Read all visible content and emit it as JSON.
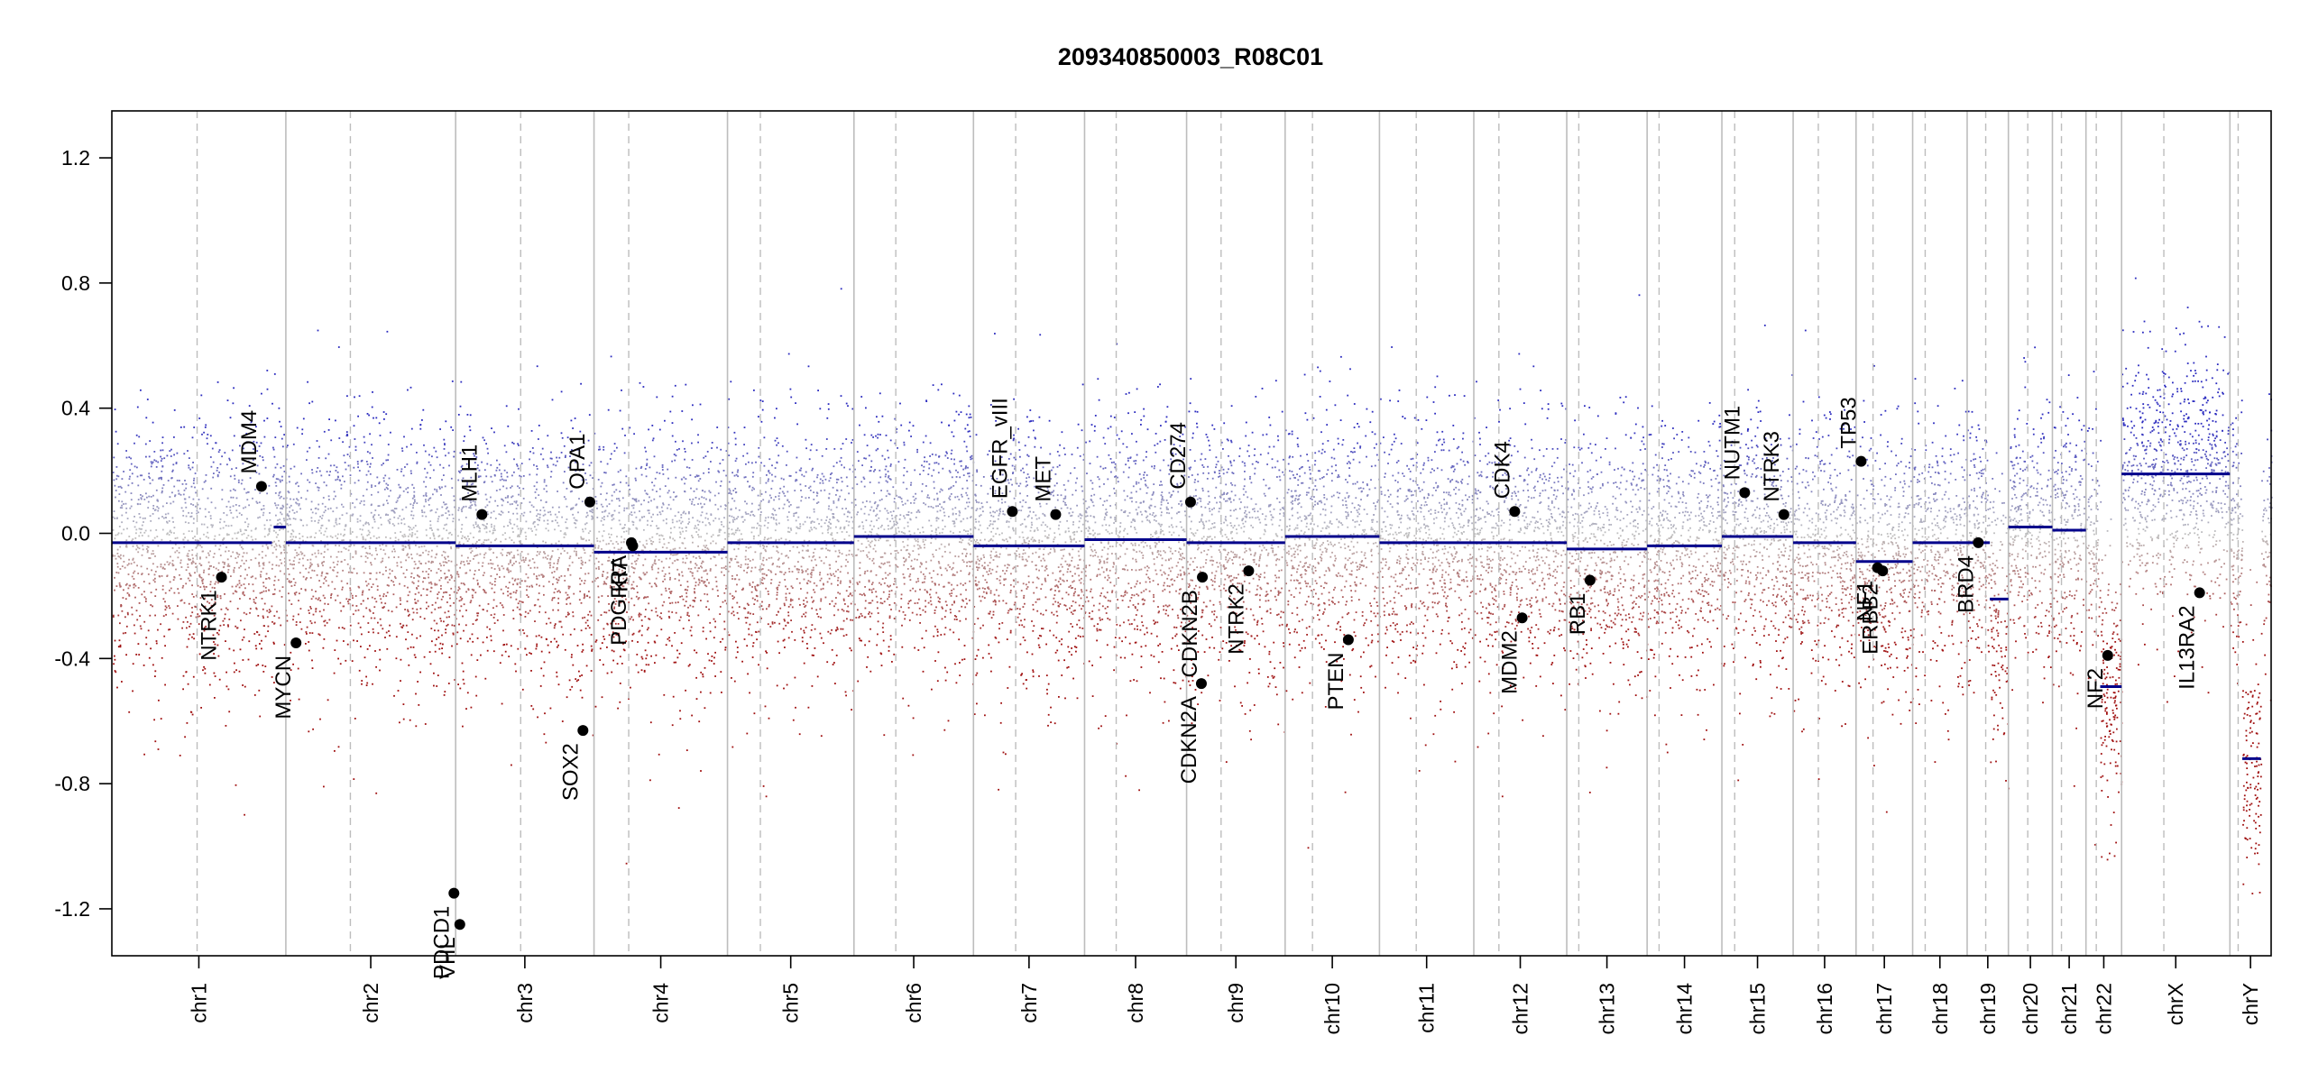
{
  "chart_data": {
    "type": "scatter",
    "title": "209340850003_R08C01",
    "xlabel": "",
    "ylabel": "",
    "ylim": [
      -1.35,
      1.35
    ],
    "yticks": [
      "1.2",
      "0.8",
      "0.4",
      "0.0",
      "-0.4",
      "-0.8",
      "-1.2"
    ],
    "ytick_values": [
      1.2,
      0.8,
      0.4,
      0.0,
      -0.4,
      -0.8,
      -1.2
    ],
    "grid": false,
    "colors": {
      "gain": "#2b2bbf",
      "loss": "#a01010",
      "neutral": "#bfbfbf",
      "segment": "#00008b",
      "chrom_border": "#bdbdbd",
      "centromere": "#bdbdbd",
      "gene_point": "#000000"
    },
    "chromosomes": [
      {
        "name": "chr1",
        "length": 249,
        "centromere": 0.49,
        "segments": [
          {
            "from": 0,
            "to": 0.92,
            "value": -0.03
          },
          {
            "from": 0.93,
            "to": 1.0,
            "value": 0.02
          }
        ]
      },
      {
        "name": "chr2",
        "length": 243,
        "centromere": 0.38,
        "segments": [
          {
            "from": 0,
            "to": 1.0,
            "value": -0.03
          }
        ]
      },
      {
        "name": "chr3",
        "length": 198,
        "centromere": 0.47,
        "segments": [
          {
            "from": 0,
            "to": 1.0,
            "value": -0.04
          }
        ]
      },
      {
        "name": "chr4",
        "length": 191,
        "centromere": 0.26,
        "segments": [
          {
            "from": 0,
            "to": 1.0,
            "value": -0.06
          }
        ]
      },
      {
        "name": "chr5",
        "length": 181,
        "centromere": 0.26,
        "segments": [
          {
            "from": 0,
            "to": 1.0,
            "value": -0.03
          }
        ]
      },
      {
        "name": "chr6",
        "length": 171,
        "centromere": 0.35,
        "segments": [
          {
            "from": 0,
            "to": 1.0,
            "value": -0.01
          }
        ]
      },
      {
        "name": "chr7",
        "length": 159,
        "centromere": 0.38,
        "segments": [
          {
            "from": 0,
            "to": 1.0,
            "value": -0.04
          }
        ]
      },
      {
        "name": "chr8",
        "length": 146,
        "centromere": 0.31,
        "segments": [
          {
            "from": 0,
            "to": 1.0,
            "value": -0.02
          }
        ]
      },
      {
        "name": "chr9",
        "length": 141,
        "centromere": 0.35,
        "segments": [
          {
            "from": 0,
            "to": 1.0,
            "value": -0.03
          }
        ]
      },
      {
        "name": "chr10",
        "length": 135,
        "centromere": 0.29,
        "segments": [
          {
            "from": 0,
            "to": 1.0,
            "value": -0.01
          }
        ]
      },
      {
        "name": "chr11",
        "length": 135,
        "centromere": 0.39,
        "segments": [
          {
            "from": 0,
            "to": 1.0,
            "value": -0.03
          }
        ]
      },
      {
        "name": "chr12",
        "length": 133,
        "centromere": 0.27,
        "segments": [
          {
            "from": 0,
            "to": 1.0,
            "value": -0.03
          }
        ]
      },
      {
        "name": "chr13",
        "length": 115,
        "centromere": 0.15,
        "segments": [
          {
            "from": 0,
            "to": 1.0,
            "value": -0.05
          }
        ]
      },
      {
        "name": "chr14",
        "length": 107,
        "centromere": 0.16,
        "segments": [
          {
            "from": 0,
            "to": 1.0,
            "value": -0.04
          }
        ]
      },
      {
        "name": "chr15",
        "length": 102,
        "centromere": 0.18,
        "segments": [
          {
            "from": 0,
            "to": 1.0,
            "value": -0.01
          }
        ]
      },
      {
        "name": "chr16",
        "length": 90,
        "centromere": 0.4,
        "segments": [
          {
            "from": 0,
            "to": 1.0,
            "value": -0.03
          }
        ]
      },
      {
        "name": "chr17",
        "length": 81,
        "centromere": 0.3,
        "segments": [
          {
            "from": 0,
            "to": 1.0,
            "value": -0.09
          }
        ]
      },
      {
        "name": "chr18",
        "length": 78,
        "centromere": 0.23,
        "segments": [
          {
            "from": 0,
            "to": 1.0,
            "value": -0.03
          }
        ]
      },
      {
        "name": "chr19",
        "length": 59,
        "centromere": 0.45,
        "segments": [
          {
            "from": 0,
            "to": 0.55,
            "value": -0.03
          },
          {
            "from": 0.55,
            "to": 1.0,
            "value": -0.21
          }
        ]
      },
      {
        "name": "chr20",
        "length": 63,
        "centromere": 0.44,
        "segments": [
          {
            "from": 0,
            "to": 1.0,
            "value": 0.02
          }
        ]
      },
      {
        "name": "chr21",
        "length": 48,
        "centromere": 0.27,
        "segments": [
          {
            "from": 0,
            "to": 1.0,
            "value": 0.01
          }
        ]
      },
      {
        "name": "chr22",
        "length": 51,
        "centromere": 0.29,
        "segments": [
          {
            "from": 0.4,
            "to": 1.0,
            "value": -0.49
          }
        ]
      },
      {
        "name": "chrX",
        "length": 155,
        "centromere": 0.39,
        "segments": [
          {
            "from": 0,
            "to": 1.0,
            "value": 0.19
          }
        ]
      },
      {
        "name": "chrY",
        "length": 59,
        "centromere": 0.2,
        "segments": [
          {
            "from": 0.3,
            "to": 0.75,
            "value": -0.72
          }
        ]
      }
    ],
    "genes": [
      {
        "name": "NTRK1",
        "chrom": "chr1",
        "pos": 0.63,
        "value": -0.14
      },
      {
        "name": "MDM4",
        "chrom": "chr1",
        "pos": 0.86,
        "value": 0.15
      },
      {
        "name": "MYCN",
        "chrom": "chr2",
        "pos": 0.06,
        "value": -0.35
      },
      {
        "name": "PDCD1",
        "chrom": "chr2",
        "pos": 0.99,
        "value": -1.15
      },
      {
        "name": "VHL",
        "chrom": "chr3",
        "pos": 0.03,
        "value": -1.25
      },
      {
        "name": "MLH1",
        "chrom": "chr3",
        "pos": 0.19,
        "value": 0.06
      },
      {
        "name": "SOX2",
        "chrom": "chr3",
        "pos": 0.92,
        "value": -0.63
      },
      {
        "name": "OPA1",
        "chrom": "chr3",
        "pos": 0.97,
        "value": 0.1
      },
      {
        "name": "PDGFRA",
        "chrom": "chr4",
        "pos": 0.28,
        "value": -0.03
      },
      {
        "name": "KIT",
        "chrom": "chr4",
        "pos": 0.29,
        "value": -0.04
      },
      {
        "name": "EGFR_vIII",
        "chrom": "chr7",
        "pos": 0.35,
        "value": 0.07
      },
      {
        "name": "MET",
        "chrom": "chr7",
        "pos": 0.74,
        "value": 0.06
      },
      {
        "name": "CD274",
        "chrom": "chr9",
        "pos": 0.04,
        "value": 0.1
      },
      {
        "name": "CDKN2A",
        "chrom": "chr9",
        "pos": 0.15,
        "value": -0.48
      },
      {
        "name": "CDKN2B",
        "chrom": "chr9",
        "pos": 0.16,
        "value": -0.14
      },
      {
        "name": "NTRK2",
        "chrom": "chr9",
        "pos": 0.63,
        "value": -0.12
      },
      {
        "name": "PTEN",
        "chrom": "chr10",
        "pos": 0.67,
        "value": -0.34
      },
      {
        "name": "CDK4",
        "chrom": "chr12",
        "pos": 0.44,
        "value": 0.07
      },
      {
        "name": "MDM2",
        "chrom": "chr12",
        "pos": 0.52,
        "value": -0.27
      },
      {
        "name": "RB1",
        "chrom": "chr13",
        "pos": 0.29,
        "value": -0.15
      },
      {
        "name": "NUTM1",
        "chrom": "chr15",
        "pos": 0.32,
        "value": 0.13
      },
      {
        "name": "NTRK3",
        "chrom": "chr15",
        "pos": 0.87,
        "value": 0.06
      },
      {
        "name": "TP53",
        "chrom": "chr17",
        "pos": 0.09,
        "value": 0.23
      },
      {
        "name": "NF1",
        "chrom": "chr17",
        "pos": 0.38,
        "value": -0.11
      },
      {
        "name": "ERBB2",
        "chrom": "chr17",
        "pos": 0.47,
        "value": -0.12
      },
      {
        "name": "BRD4",
        "chrom": "chr19",
        "pos": 0.27,
        "value": -0.03
      },
      {
        "name": "NF2",
        "chrom": "chr22",
        "pos": 0.61,
        "value": -0.39
      },
      {
        "name": "IL13RA2",
        "chrom": "chrX",
        "pos": 0.72,
        "value": -0.19
      }
    ]
  }
}
